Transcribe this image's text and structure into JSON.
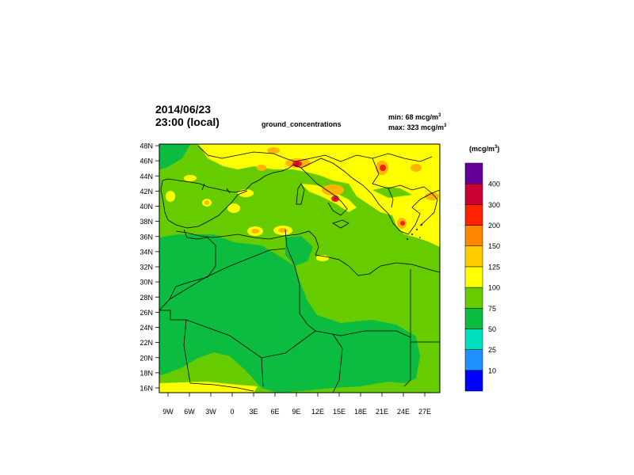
{
  "header": {
    "date": "2014/06/23",
    "time": "23:00 (local)",
    "field": "ground_concentrations",
    "min_label": "min: 68 mcg/m",
    "max_label": "max: 323 mcg/m",
    "unit_exp": "3"
  },
  "legend": {
    "units_label": "(mcg/m",
    "units_exp": "3",
    "units_close": ")",
    "levels": [
      "10",
      "25",
      "50",
      "75",
      "100",
      "125",
      "150",
      "200",
      "300",
      "400"
    ],
    "colors": [
      "#0000ff",
      "#1e90ff",
      "#00e0c0",
      "#0cbc40",
      "#66cc00",
      "#ffff00",
      "#ffcc00",
      "#ff8800",
      "#ff2200",
      "#cc0033",
      "#660099"
    ]
  },
  "map": {
    "lat_labels": [
      "48N",
      "46N",
      "44N",
      "42N",
      "40N",
      "38N",
      "36N",
      "34N",
      "32N",
      "30N",
      "28N",
      "26N",
      "24N",
      "22N",
      "20N",
      "18N",
      "16N"
    ],
    "lon_labels": [
      "9W",
      "6W",
      "3W",
      "0",
      "3E",
      "6E",
      "9E",
      "12E",
      "15E",
      "18E",
      "21E",
      "24E",
      "27E"
    ],
    "colors": {
      "dark_green": "#0cbc40",
      "light_green": "#66cc00",
      "yellow": "#ffff00",
      "orange": "#ffb400",
      "red": "#ee2222",
      "crimson": "#cc0033"
    }
  }
}
